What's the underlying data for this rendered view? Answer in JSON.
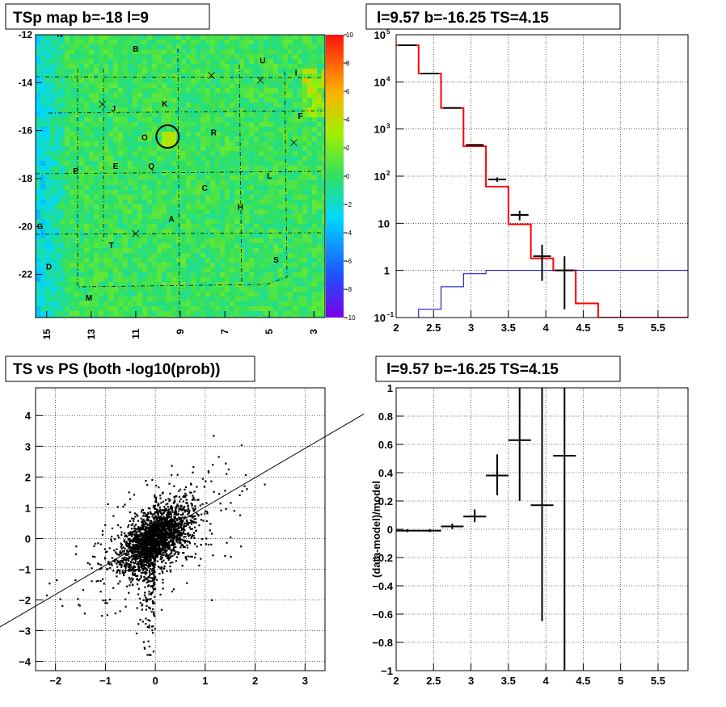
{
  "panels": {
    "map": {
      "title": "TSp map b=-18 l=9"
    },
    "spectrum": {
      "title": "l=9.57 b=-16.25 TS=4.15"
    },
    "scatter": {
      "title": "TS vs PS (both -log10(prob))"
    },
    "residual": {
      "title": "l=9.57 b=-16.25 TS=4.15",
      "ylabel": "(data-model)/model"
    }
  },
  "chart_data": [
    {
      "type": "heatmap",
      "title": "TSp map b=-18 l=9",
      "x_ticks": [
        "15",
        "13",
        "11",
        "9",
        "7",
        "5",
        "3"
      ],
      "x_tick_values": [
        15,
        13,
        11,
        9,
        7,
        5,
        3
      ],
      "xlim": [
        15.5,
        2.5
      ],
      "y_ticks": [
        "-12",
        "-14",
        "-16",
        "-18",
        "-20",
        "-22"
      ],
      "y_tick_values": [
        -12,
        -14,
        -16,
        -18,
        -20,
        -22
      ],
      "ylim": [
        -23.8,
        -12
      ],
      "palette_ticks": [
        "10",
        "8",
        "6",
        "4",
        "2",
        "0",
        "-2",
        "-4",
        "-6",
        "-8",
        "-10"
      ],
      "palette_range": [
        -10,
        10
      ],
      "colors": {
        "low": "#7a00e6",
        "mid": "#30e060",
        "high": "#ff1010"
      },
      "source_labels": [
        {
          "text": "N",
          "l": 14.4,
          "b": -12.1
        },
        {
          "text": "B",
          "l": 11.0,
          "b": -12.7
        },
        {
          "text": "U",
          "l": 5.3,
          "b": -13.2
        },
        {
          "text": "I",
          "l": 3.8,
          "b": -13.7
        },
        {
          "text": "K",
          "l": 9.7,
          "b": -15.0
        },
        {
          "text": "J",
          "l": 12.0,
          "b": -15.2
        },
        {
          "text": "F",
          "l": 3.6,
          "b": -15.5
        },
        {
          "text": "O",
          "l": 10.6,
          "b": -16.4
        },
        {
          "text": "R",
          "l": 7.5,
          "b": -16.2
        },
        {
          "text": "P",
          "l": 13.7,
          "b": -17.8
        },
        {
          "text": "E",
          "l": 11.9,
          "b": -17.6
        },
        {
          "text": "Q",
          "l": 10.3,
          "b": -17.6
        },
        {
          "text": "L",
          "l": 5.0,
          "b": -18.0
        },
        {
          "text": "C",
          "l": 7.9,
          "b": -18.5
        },
        {
          "text": "H",
          "l": 6.3,
          "b": -19.3
        },
        {
          "text": "A",
          "l": 9.4,
          "b": -19.8
        },
        {
          "text": "G",
          "l": 15.3,
          "b": -20.1
        },
        {
          "text": "T",
          "l": 12.1,
          "b": -20.9
        },
        {
          "text": "S",
          "l": 4.7,
          "b": -21.5
        },
        {
          "text": "D",
          "l": 14.9,
          "b": -21.8
        },
        {
          "text": "M",
          "l": 13.1,
          "b": -23.1
        }
      ],
      "cross_markers": [
        {
          "l": 7.6,
          "b": -13.7
        },
        {
          "l": 5.4,
          "b": -13.9
        },
        {
          "l": 12.5,
          "b": -14.9
        },
        {
          "l": 3.9,
          "b": -16.5
        },
        {
          "l": 11.0,
          "b": -20.3
        }
      ],
      "circle": {
        "l": 9.57,
        "b": -16.25
      }
    },
    {
      "type": "line",
      "title": "l=9.57 b=-16.25 TS=4.15",
      "log_y": true,
      "xlim": [
        2,
        5.9
      ],
      "ylim": [
        0.1,
        100000
      ],
      "x_ticks": [
        "2",
        "2.5",
        "3",
        "3.5",
        "4",
        "4.5",
        "5",
        "5.5"
      ],
      "x_tick_values": [
        2,
        2.5,
        3,
        3.5,
        4,
        4.5,
        5,
        5.5
      ],
      "y_ticks": [
        {
          "v": 0.1,
          "base": "10",
          "exp": "−1"
        },
        {
          "v": 1,
          "base": "1",
          "exp": ""
        },
        {
          "v": 10,
          "base": "10",
          "exp": ""
        },
        {
          "v": 100,
          "base": "10",
          "exp": "2"
        },
        {
          "v": 1000,
          "base": "10",
          "exp": "3"
        },
        {
          "v": 10000,
          "base": "10",
          "exp": "4"
        },
        {
          "v": 100000,
          "base": "10",
          "exp": "5"
        }
      ],
      "bin_edges": [
        2.0,
        2.3,
        2.6,
        2.9,
        3.2,
        3.5,
        3.8,
        4.1,
        4.4,
        4.7,
        5.0,
        5.3,
        5.6,
        5.9
      ],
      "series": [
        {
          "values": [
            60000,
            15000,
            2800,
            430,
            60,
            9.5,
            1.8,
            1.0,
            0.2,
            0.1,
            0.1,
            0.1,
            0.1
          ],
          "color": "#ff0000"
        },
        {
          "values": [
            0.1,
            0.15,
            0.45,
            0.85,
            1.0,
            1.0,
            1.0,
            1.0,
            1.0,
            1.0,
            1.0,
            1.0,
            1.0
          ],
          "color": "#0000cc"
        }
      ],
      "points": [
        {
          "x": 2.15,
          "y": 60000,
          "ylo": 59500,
          "yhi": 60500
        },
        {
          "x": 2.45,
          "y": 15000,
          "ylo": 14880,
          "yhi": 15120
        },
        {
          "x": 2.75,
          "y": 2800,
          "ylo": 2750,
          "yhi": 2850
        },
        {
          "x": 3.05,
          "y": 460,
          "ylo": 440,
          "yhi": 480
        },
        {
          "x": 3.35,
          "y": 85,
          "ylo": 76,
          "yhi": 94
        },
        {
          "x": 3.65,
          "y": 15,
          "ylo": 11.5,
          "yhi": 18.5
        },
        {
          "x": 3.95,
          "y": 2.0,
          "ylo": 0.6,
          "yhi": 3.5
        },
        {
          "x": 4.25,
          "y": 1.0,
          "ylo": 0.15,
          "yhi": 2.0
        }
      ]
    },
    {
      "type": "scatter",
      "title": "TS vs PS (both -log10(prob))",
      "xlim": [
        -2.4,
        3.4
      ],
      "ylim": [
        -4.3,
        4.9
      ],
      "x_ticks": [
        "−2",
        "−1",
        "0",
        "1",
        "2",
        "3"
      ],
      "x_tick_values": [
        -2,
        -1,
        0,
        1,
        2,
        3
      ],
      "y_ticks": [
        "−4",
        "−3",
        "−2",
        "−1",
        "0",
        "1",
        "2",
        "3",
        "4"
      ],
      "y_tick_values": [
        -4,
        -3,
        -2,
        -1,
        0,
        1,
        2,
        3,
        4
      ],
      "reference_line": {
        "slope": 0.95,
        "intercept": 0.08
      }
    },
    {
      "type": "scatter",
      "title": "l=9.57 b=-16.25 TS=4.15",
      "ylabel": "(data-model)/model",
      "xlim": [
        2,
        5.9
      ],
      "ylim": [
        -1,
        1
      ],
      "x_ticks": [
        "2",
        "2.5",
        "3",
        "3.5",
        "4",
        "4.5",
        "5",
        "5.5"
      ],
      "x_tick_values": [
        2,
        2.5,
        3,
        3.5,
        4,
        4.5,
        5,
        5.5
      ],
      "y_ticks": [
        "−1",
        "−0.8",
        "−0.6",
        "−0.4",
        "−0.2",
        "0",
        "0.2",
        "0.4",
        "0.6",
        "0.8",
        "1"
      ],
      "y_tick_values": [
        -1,
        -0.8,
        -0.6,
        -0.4,
        -0.2,
        0,
        0.2,
        0.4,
        0.6,
        0.8,
        1
      ],
      "points": [
        {
          "x": 2.15,
          "y": -0.01,
          "ylo": -0.02,
          "yhi": 0.0
        },
        {
          "x": 2.45,
          "y": -0.01,
          "ylo": -0.02,
          "yhi": 0.0
        },
        {
          "x": 2.75,
          "y": 0.02,
          "ylo": 0.0,
          "yhi": 0.04
        },
        {
          "x": 3.05,
          "y": 0.09,
          "ylo": 0.05,
          "yhi": 0.14
        },
        {
          "x": 3.35,
          "y": 0.38,
          "ylo": 0.24,
          "yhi": 0.53
        },
        {
          "x": 3.65,
          "y": 0.63,
          "ylo": 0.2,
          "yhi": 1.0
        },
        {
          "x": 3.95,
          "y": 0.17,
          "ylo": -0.65,
          "yhi": 1.0
        },
        {
          "x": 4.25,
          "y": 0.52,
          "ylo": -1.0,
          "yhi": 1.0
        }
      ]
    }
  ]
}
